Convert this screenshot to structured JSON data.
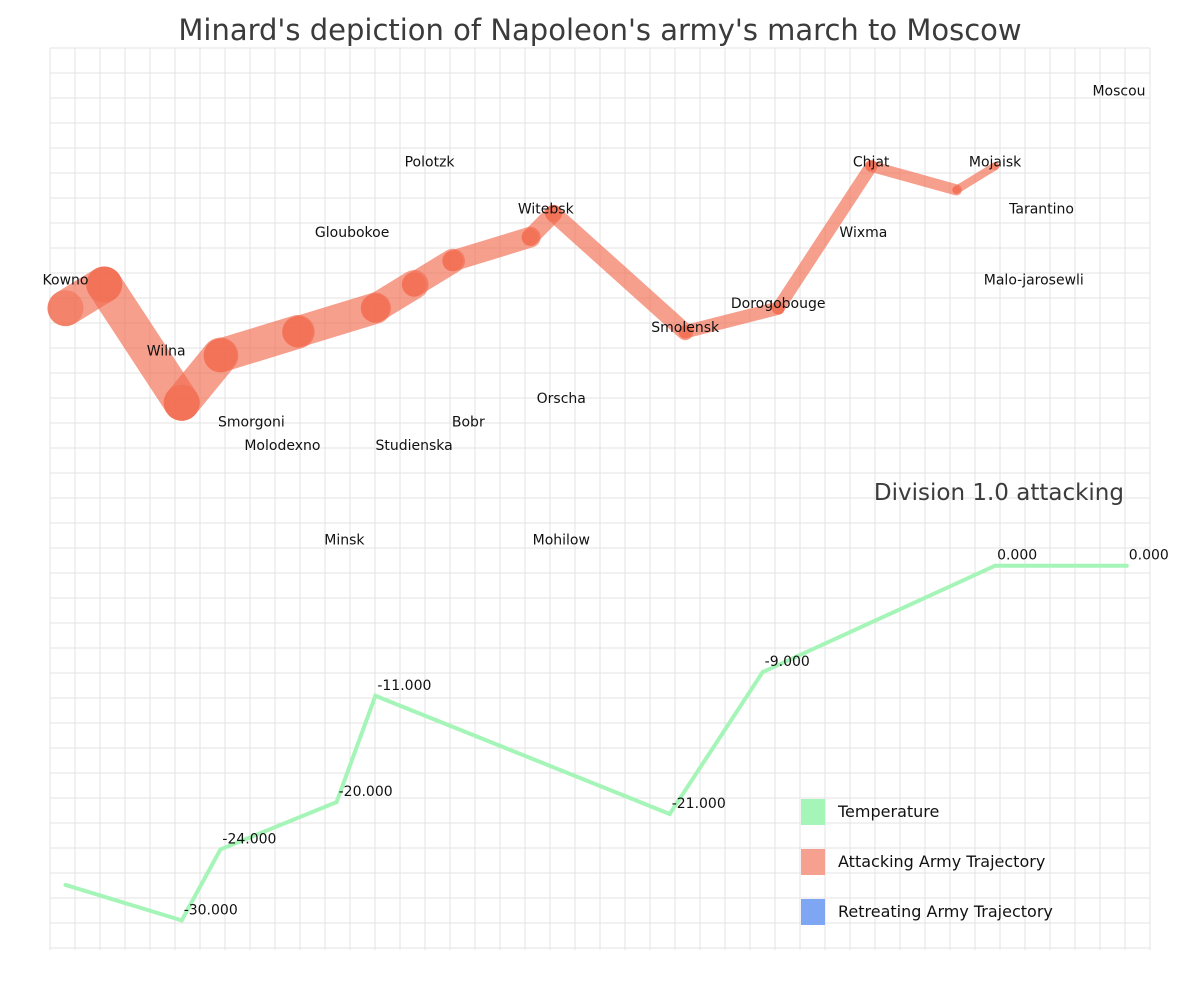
{
  "chart_data": {
    "type": "line",
    "title": "Minard's depiction of Napoleon's army's march to Moscow",
    "subtitle": "Division 1.0 attacking",
    "grid": true,
    "colors": {
      "attacking": "#f26b50",
      "retreating": "#7ea6f2",
      "temperature": "#a6f5b8"
    },
    "map": {
      "xlim": [
        23.8,
        38.0
      ],
      "ylim": [
        53.7,
        56.0
      ],
      "cities": [
        {
          "name": "Kowno",
          "lon": 24.0,
          "lat": 55.0
        },
        {
          "name": "Wilna",
          "lon": 25.3,
          "lat": 54.7
        },
        {
          "name": "Smorgoni",
          "lon": 26.4,
          "lat": 54.4
        },
        {
          "name": "Molodexno",
          "lon": 26.8,
          "lat": 54.3
        },
        {
          "name": "Gloubokoe",
          "lon": 27.7,
          "lat": 55.2
        },
        {
          "name": "Minsk",
          "lon": 27.6,
          "lat": 53.9
        },
        {
          "name": "Studienska",
          "lon": 28.5,
          "lat": 54.3
        },
        {
          "name": "Polotzk",
          "lon": 28.7,
          "lat": 55.5
        },
        {
          "name": "Bobr",
          "lon": 29.2,
          "lat": 54.4
        },
        {
          "name": "Witebsk",
          "lon": 30.2,
          "lat": 55.3
        },
        {
          "name": "Orscha",
          "lon": 30.4,
          "lat": 54.5
        },
        {
          "name": "Mohilow",
          "lon": 30.4,
          "lat": 53.9
        },
        {
          "name": "Smolensk",
          "lon": 32.0,
          "lat": 54.8
        },
        {
          "name": "Dorogobouge",
          "lon": 33.2,
          "lat": 54.9
        },
        {
          "name": "Wixma",
          "lon": 34.3,
          "lat": 55.2
        },
        {
          "name": "Chjat",
          "lon": 34.4,
          "lat": 55.5
        },
        {
          "name": "Mojaisk",
          "lon": 36.0,
          "lat": 55.5
        },
        {
          "name": "Moscou",
          "lon": 37.6,
          "lat": 55.8
        },
        {
          "name": "Tarantino",
          "lon": 36.6,
          "lat": 55.3
        },
        {
          "name": "Malo-jarosewli",
          "lon": 36.5,
          "lat": 55.0
        }
      ],
      "attacking_path": [
        {
          "lon": 24.0,
          "lat": 54.9,
          "survivors": 340000
        },
        {
          "lon": 24.5,
          "lat": 55.0,
          "survivors": 340000
        },
        {
          "lon": 25.5,
          "lat": 54.5,
          "survivors": 340000
        },
        {
          "lon": 26.0,
          "lat": 54.7,
          "survivors": 320000
        },
        {
          "lon": 27.0,
          "lat": 54.8,
          "survivors": 300000
        },
        {
          "lon": 28.0,
          "lat": 54.9,
          "survivors": 280000
        },
        {
          "lon": 28.5,
          "lat": 55.0,
          "survivors": 240000
        },
        {
          "lon": 29.0,
          "lat": 55.1,
          "survivors": 210000
        },
        {
          "lon": 30.0,
          "lat": 55.2,
          "survivors": 180000
        },
        {
          "lon": 30.3,
          "lat": 55.3,
          "survivors": 175000
        },
        {
          "lon": 32.0,
          "lat": 54.8,
          "survivors": 145000
        },
        {
          "lon": 33.2,
          "lat": 54.9,
          "survivors": 140000
        },
        {
          "lon": 34.4,
          "lat": 55.5,
          "survivors": 127100
        },
        {
          "lon": 35.5,
          "lat": 55.4,
          "survivors": 100000
        },
        {
          "lon": 36.0,
          "lat": 55.5,
          "survivors": 100000
        }
      ]
    },
    "temperature": {
      "xlim": [
        23.8,
        38.0
      ],
      "ylim": [
        -32,
        1.5
      ],
      "points": [
        {
          "lon": 24.0,
          "temp": -27.0,
          "label": ""
        },
        {
          "lon": 25.5,
          "temp": -30.0,
          "label": "-30.000"
        },
        {
          "lon": 26.0,
          "temp": -24.0,
          "label": "-24.000"
        },
        {
          "lon": 27.5,
          "temp": -20.0,
          "label": "-20.000"
        },
        {
          "lon": 28.0,
          "temp": -11.0,
          "label": "-11.000"
        },
        {
          "lon": 31.8,
          "temp": -21.0,
          "label": "-21.000"
        },
        {
          "lon": 33.0,
          "temp": -9.0,
          "label": "-9.000"
        },
        {
          "lon": 36.0,
          "temp": 0.0,
          "label": "0.000"
        },
        {
          "lon": 37.7,
          "temp": 0.0,
          "label": "0.000"
        }
      ]
    },
    "legend": {
      "position": "bottom-right",
      "items": [
        {
          "label": "Temperature",
          "color": "#a6f5b8"
        },
        {
          "label": "Attacking Army Trajectory",
          "color": "#f6a090"
        },
        {
          "label": "Retreating Army Trajectory",
          "color": "#7ea6f2"
        }
      ]
    }
  }
}
